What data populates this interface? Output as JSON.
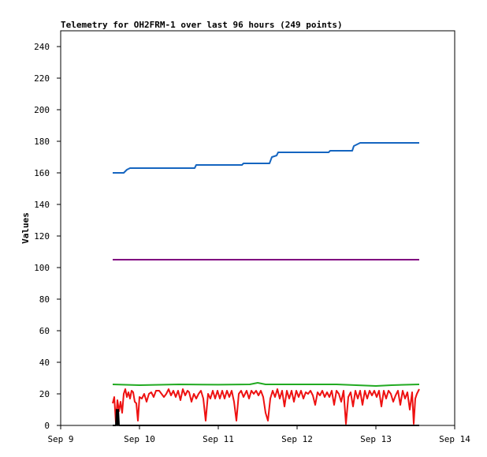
{
  "chart_data": {
    "type": "line",
    "title": "Telemetry for OH2FRM-1 over last 96 hours (249 points)",
    "xlabel": "",
    "ylabel": "Values",
    "ylim": [
      0,
      250
    ],
    "yticks": [
      0,
      20,
      40,
      60,
      80,
      100,
      120,
      140,
      160,
      180,
      200,
      220,
      240
    ],
    "xlim": [
      0,
      5
    ],
    "xticks": [
      {
        "value": 0,
        "label": "Sep 9"
      },
      {
        "value": 1,
        "label": "Sep 10"
      },
      {
        "value": 2,
        "label": "Sep 11"
      },
      {
        "value": 3,
        "label": "Sep 12"
      },
      {
        "value": 4,
        "label": "Sep 13"
      },
      {
        "value": 5,
        "label": "Sep 14"
      }
    ],
    "grid": false,
    "legend": "none",
    "series": [
      {
        "color": "#1565c0",
        "points": [
          [
            0.66,
            160
          ],
          [
            0.8,
            160
          ],
          [
            0.84,
            162
          ],
          [
            0.88,
            163
          ],
          [
            1.2,
            163
          ],
          [
            1.6,
            163
          ],
          [
            1.7,
            163
          ],
          [
            1.72,
            165
          ],
          [
            2.0,
            165
          ],
          [
            2.3,
            165
          ],
          [
            2.32,
            166
          ],
          [
            2.65,
            166
          ],
          [
            2.68,
            170
          ],
          [
            2.74,
            171
          ],
          [
            2.76,
            173
          ],
          [
            3.05,
            173
          ],
          [
            3.4,
            173
          ],
          [
            3.42,
            174
          ],
          [
            3.7,
            174
          ],
          [
            3.72,
            177
          ],
          [
            3.76,
            178
          ],
          [
            3.8,
            179
          ],
          [
            4.2,
            179
          ],
          [
            4.55,
            179
          ]
        ]
      },
      {
        "color": "#800080",
        "points": [
          [
            0.66,
            105
          ],
          [
            4.55,
            105
          ]
        ]
      },
      {
        "color": "#22aa22",
        "points": [
          [
            0.66,
            26
          ],
          [
            1.0,
            25.5
          ],
          [
            1.5,
            26
          ],
          [
            2.0,
            25.8
          ],
          [
            2.4,
            26
          ],
          [
            2.5,
            27
          ],
          [
            2.6,
            26
          ],
          [
            3.0,
            26
          ],
          [
            3.5,
            26
          ],
          [
            4.0,
            25
          ],
          [
            4.2,
            25.5
          ],
          [
            4.55,
            26
          ]
        ]
      },
      {
        "color": "#ee1111",
        "points": [
          [
            0.66,
            14
          ],
          [
            0.68,
            18
          ],
          [
            0.7,
            2
          ],
          [
            0.72,
            16
          ],
          [
            0.74,
            9
          ],
          [
            0.76,
            15
          ],
          [
            0.78,
            8
          ],
          [
            0.8,
            20
          ],
          [
            0.82,
            23
          ],
          [
            0.84,
            18
          ],
          [
            0.86,
            21
          ],
          [
            0.88,
            17
          ],
          [
            0.9,
            22
          ],
          [
            0.92,
            21
          ],
          [
            0.94,
            15
          ],
          [
            0.96,
            14
          ],
          [
            0.98,
            3
          ],
          [
            1.0,
            18
          ],
          [
            1.03,
            17
          ],
          [
            1.06,
            20
          ],
          [
            1.09,
            15
          ],
          [
            1.12,
            20
          ],
          [
            1.15,
            21
          ],
          [
            1.18,
            18
          ],
          [
            1.21,
            22
          ],
          [
            1.25,
            22
          ],
          [
            1.28,
            20
          ],
          [
            1.31,
            18
          ],
          [
            1.34,
            20
          ],
          [
            1.37,
            23
          ],
          [
            1.4,
            19
          ],
          [
            1.43,
            22
          ],
          [
            1.46,
            18
          ],
          [
            1.49,
            22
          ],
          [
            1.52,
            16
          ],
          [
            1.55,
            23
          ],
          [
            1.58,
            19
          ],
          [
            1.61,
            22
          ],
          [
            1.63,
            21
          ],
          [
            1.66,
            15
          ],
          [
            1.69,
            20
          ],
          [
            1.72,
            17
          ],
          [
            1.75,
            20
          ],
          [
            1.78,
            22
          ],
          [
            1.81,
            17
          ],
          [
            1.84,
            3
          ],
          [
            1.87,
            20
          ],
          [
            1.9,
            17
          ],
          [
            1.93,
            22
          ],
          [
            1.96,
            17
          ],
          [
            1.99,
            22
          ],
          [
            2.02,
            17
          ],
          [
            2.05,
            22
          ],
          [
            2.08,
            17
          ],
          [
            2.11,
            22
          ],
          [
            2.14,
            18
          ],
          [
            2.17,
            22
          ],
          [
            2.2,
            15
          ],
          [
            2.23,
            3
          ],
          [
            2.26,
            20
          ],
          [
            2.29,
            22
          ],
          [
            2.32,
            18
          ],
          [
            2.36,
            22
          ],
          [
            2.39,
            17
          ],
          [
            2.42,
            22
          ],
          [
            2.45,
            20
          ],
          [
            2.48,
            22
          ],
          [
            2.51,
            19
          ],
          [
            2.54,
            22
          ],
          [
            2.57,
            18
          ],
          [
            2.6,
            8
          ],
          [
            2.63,
            3
          ],
          [
            2.66,
            17
          ],
          [
            2.69,
            22
          ],
          [
            2.72,
            18
          ],
          [
            2.75,
            23
          ],
          [
            2.78,
            17
          ],
          [
            2.81,
            22
          ],
          [
            2.84,
            12
          ],
          [
            2.87,
            22
          ],
          [
            2.9,
            17
          ],
          [
            2.93,
            22
          ],
          [
            2.96,
            15
          ],
          [
            2.99,
            22
          ],
          [
            3.02,
            18
          ],
          [
            3.05,
            22
          ],
          [
            3.08,
            17
          ],
          [
            3.11,
            21
          ],
          [
            3.14,
            20
          ],
          [
            3.17,
            22
          ],
          [
            3.2,
            19
          ],
          [
            3.23,
            13
          ],
          [
            3.26,
            21
          ],
          [
            3.29,
            19
          ],
          [
            3.32,
            22
          ],
          [
            3.35,
            18
          ],
          [
            3.38,
            21
          ],
          [
            3.41,
            18
          ],
          [
            3.44,
            22
          ],
          [
            3.47,
            13
          ],
          [
            3.5,
            22
          ],
          [
            3.53,
            20
          ],
          [
            3.56,
            15
          ],
          [
            3.59,
            22
          ],
          [
            3.62,
            1
          ],
          [
            3.65,
            18
          ],
          [
            3.68,
            21
          ],
          [
            3.71,
            12
          ],
          [
            3.74,
            22
          ],
          [
            3.77,
            17
          ],
          [
            3.8,
            22
          ],
          [
            3.83,
            13
          ],
          [
            3.86,
            22
          ],
          [
            3.89,
            17
          ],
          [
            3.92,
            22
          ],
          [
            3.95,
            19
          ],
          [
            3.98,
            22
          ],
          [
            4.01,
            18
          ],
          [
            4.04,
            22
          ],
          [
            4.07,
            12
          ],
          [
            4.1,
            22
          ],
          [
            4.13,
            17
          ],
          [
            4.16,
            22
          ],
          [
            4.19,
            20
          ],
          [
            4.22,
            15
          ],
          [
            4.25,
            19
          ],
          [
            4.28,
            22
          ],
          [
            4.31,
            13
          ],
          [
            4.34,
            22
          ],
          [
            4.37,
            17
          ],
          [
            4.4,
            21
          ],
          [
            4.43,
            10
          ],
          [
            4.46,
            21
          ],
          [
            4.48,
            1
          ],
          [
            4.5,
            17
          ],
          [
            4.52,
            20
          ],
          [
            4.55,
            23
          ]
        ]
      },
      {
        "color": "#000000",
        "points": [
          [
            0.66,
            0
          ],
          [
            0.7,
            0
          ],
          [
            0.71,
            10
          ],
          [
            0.72,
            0
          ],
          [
            0.73,
            10
          ],
          [
            0.74,
            0
          ],
          [
            0.75,
            0
          ],
          [
            4.55,
            0
          ]
        ]
      }
    ]
  }
}
